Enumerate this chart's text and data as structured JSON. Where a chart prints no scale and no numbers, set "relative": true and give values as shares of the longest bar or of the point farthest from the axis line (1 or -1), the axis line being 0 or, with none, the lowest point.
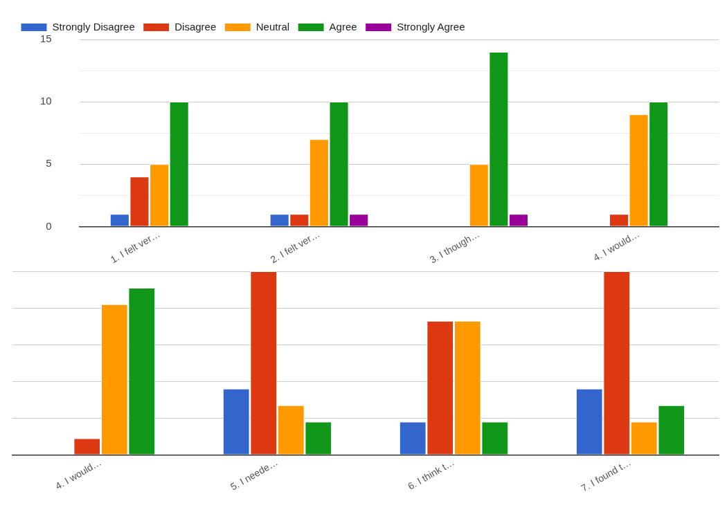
{
  "chart_data": [
    {
      "type": "bar",
      "categories": [
        "1. I felt ver…",
        "2. I felt ver…",
        "3. I though…",
        "4. I would…"
      ],
      "series": [
        {
          "name": "Strongly Disagree",
          "color": "#3366cc",
          "values": [
            1,
            1,
            0,
            0
          ]
        },
        {
          "name": "Disagree",
          "color": "#dc3912",
          "values": [
            4,
            1,
            0,
            1
          ]
        },
        {
          "name": "Neutral",
          "color": "#ff9900",
          "values": [
            5,
            7,
            5,
            9
          ]
        },
        {
          "name": "Agree",
          "color": "#109618",
          "values": [
            10,
            10,
            14,
            10
          ]
        },
        {
          "name": "Strongly Agree",
          "color": "#990099",
          "values": [
            0,
            1,
            1,
            0
          ]
        }
      ],
      "ylim": [
        0,
        15
      ],
      "yticks": [
        0,
        {
          "value": 2.5,
          "label": null
        },
        5,
        {
          "value": 7.5,
          "label": null
        },
        10,
        {
          "value": 12.5,
          "label": null
        },
        15
      ],
      "grid": "y",
      "legend": "top"
    },
    {
      "type": "bar",
      "relative": true,
      "categories": [
        "4. I would…",
        "5. I neede…",
        "6. I think t…",
        "7. I found t…"
      ],
      "series": [
        {
          "color": "#3366cc",
          "values": [
            0,
            0.36,
            0.18,
            0.36
          ]
        },
        {
          "color": "#dc3912",
          "values": [
            0.09,
            1,
            0.73,
            1
          ]
        },
        {
          "color": "#ff9900",
          "values": [
            0.82,
            0.27,
            0.73,
            0.18
          ]
        },
        {
          "color": "#109618",
          "values": [
            0.91,
            0.18,
            0.18,
            0.27
          ]
        }
      ],
      "grid": "y"
    }
  ]
}
